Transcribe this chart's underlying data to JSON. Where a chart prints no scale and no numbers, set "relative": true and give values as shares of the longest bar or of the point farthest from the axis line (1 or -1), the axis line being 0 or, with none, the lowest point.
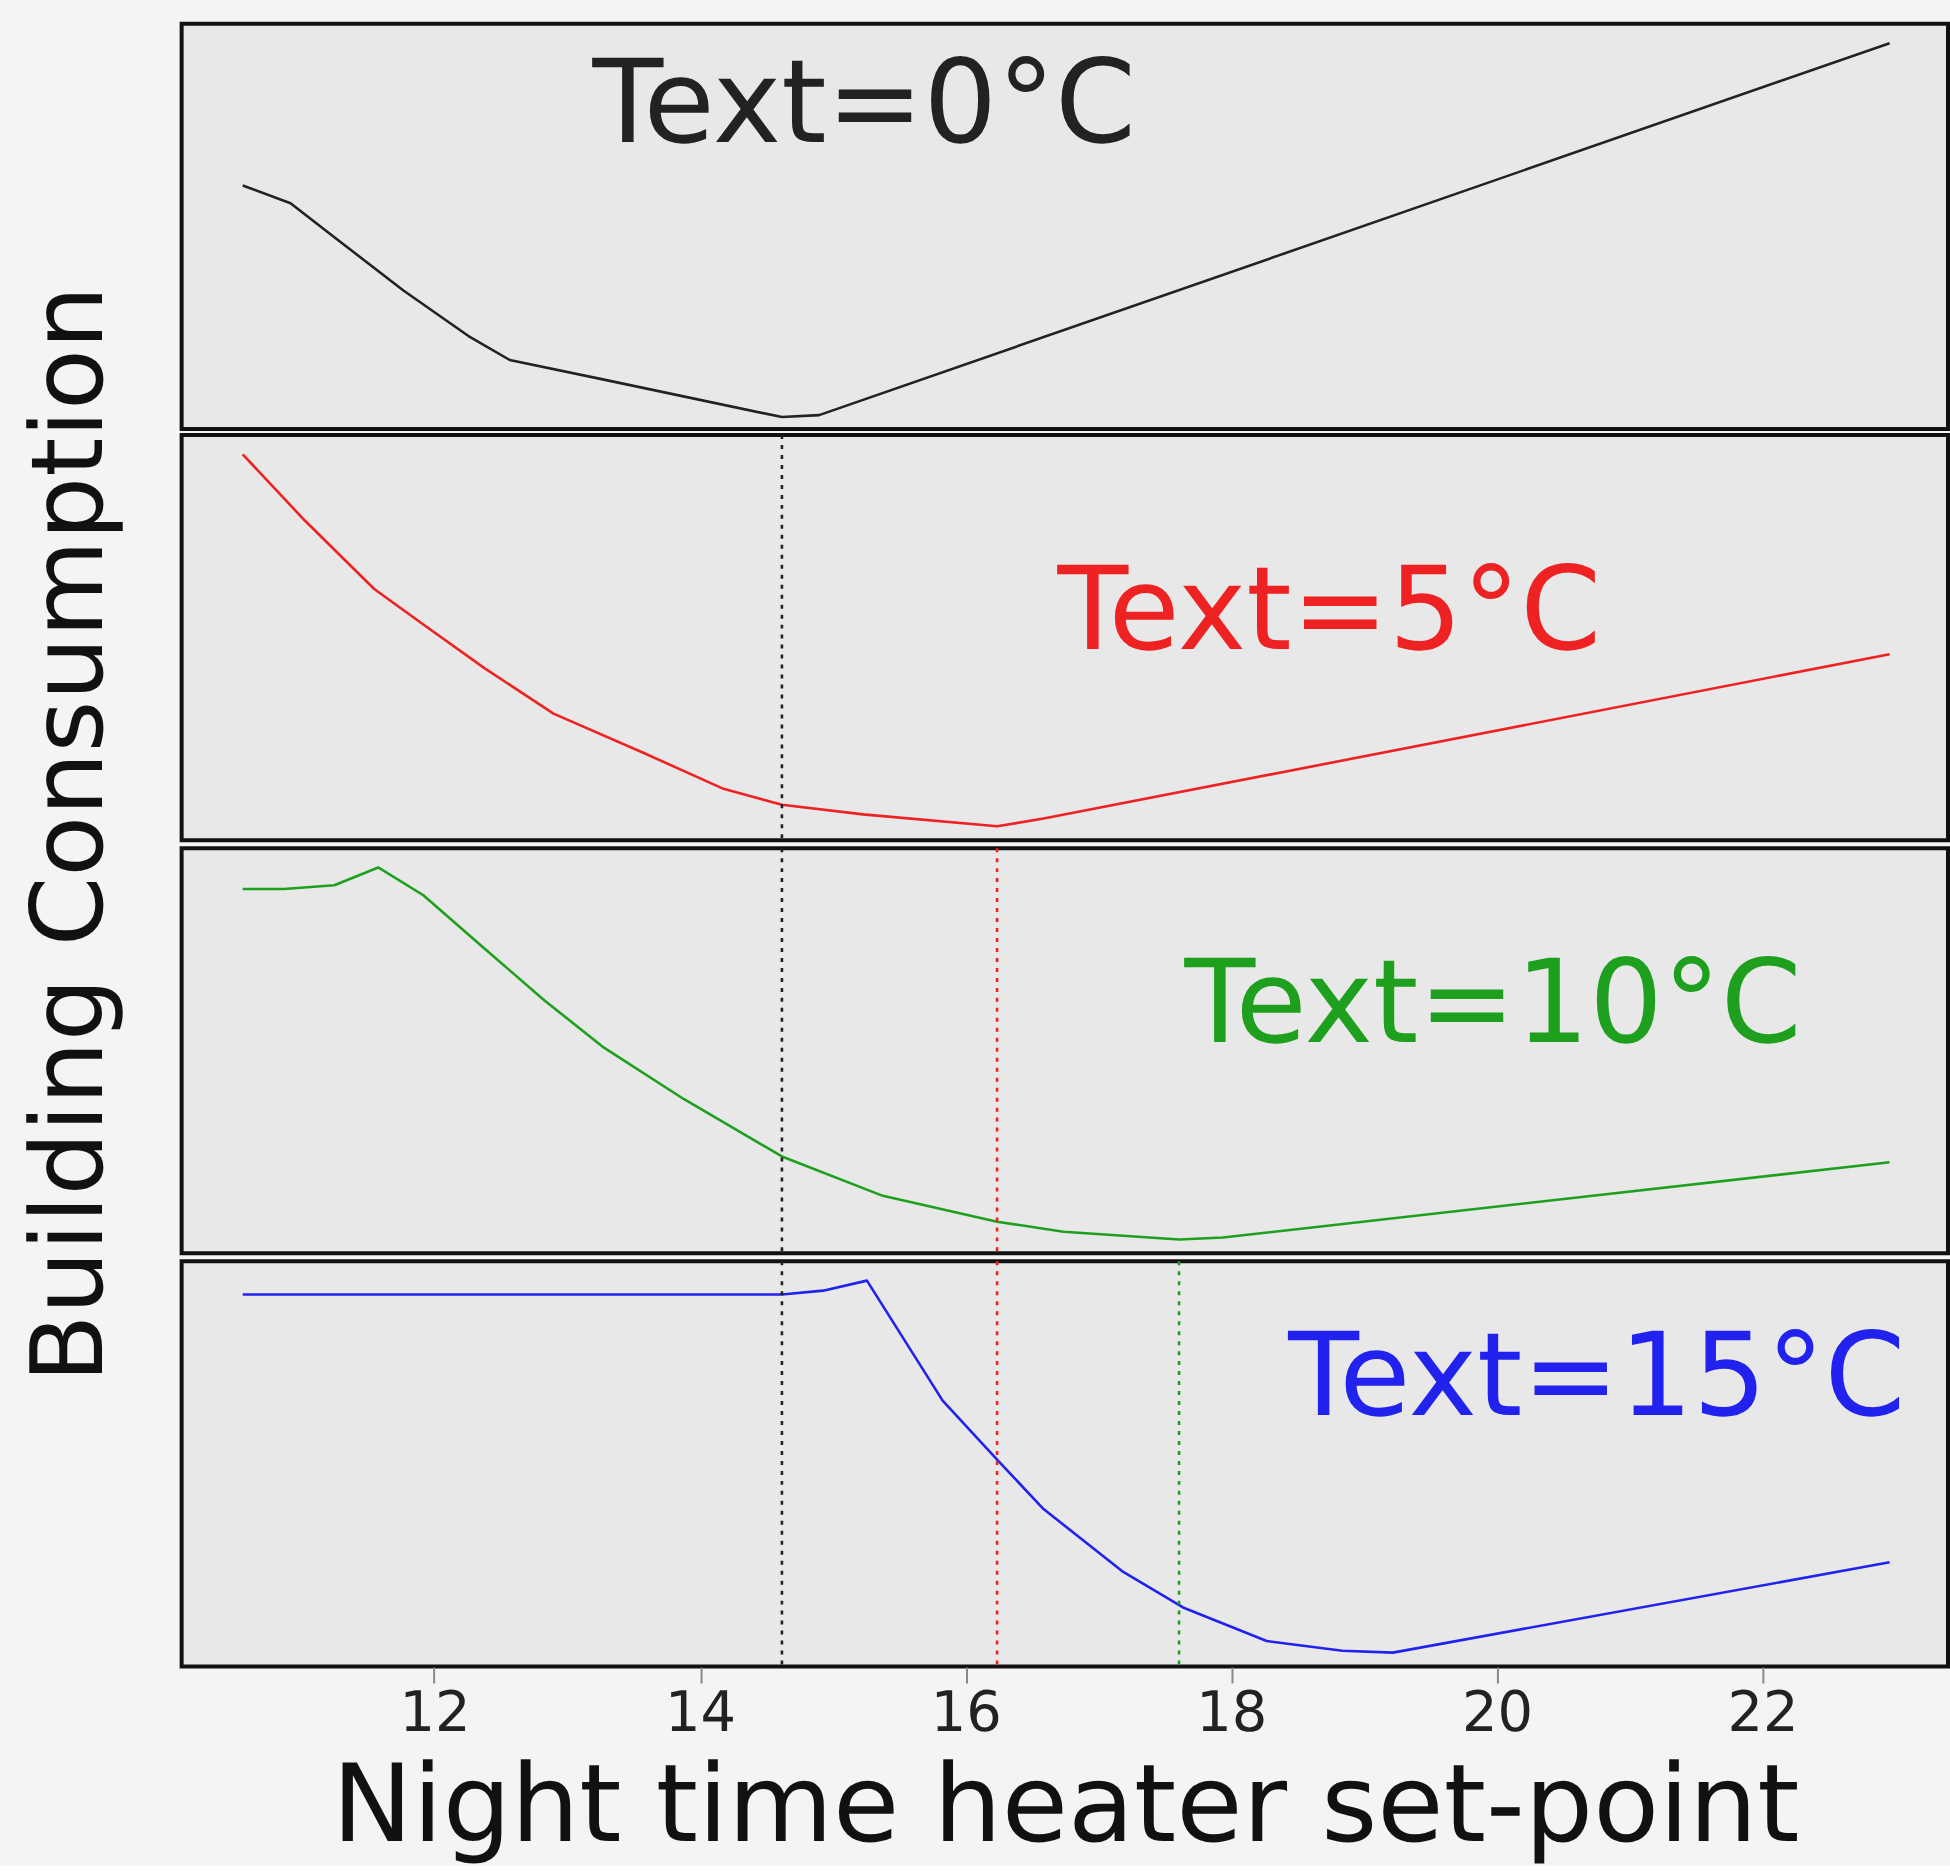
{
  "chart_data": [
    {
      "type": "line",
      "relative": true,
      "ylabel": "Building Consumption",
      "annotations": [
        "Text=0°C"
      ],
      "xlim": [
        10.1,
        23.4
      ],
      "tick_labels": false,
      "line_style": "solid",
      "marker": "none",
      "series": [
        {
          "color": "#222222",
          "x": [
            10.56,
            10.92,
            11.25,
            11.77,
            12.26,
            12.57,
            13.28,
            14.62,
            14.9,
            22.96
          ],
          "values": [
            0.631,
            0.585,
            0.497,
            0.359,
            0.241,
            0.179,
            0.128,
            0.031,
            0.036,
            1
          ]
        }
      ]
    },
    {
      "type": "line",
      "relative": true,
      "annotations": [
        "Text=5°C"
      ],
      "xlim": [
        10.1,
        23.4
      ],
      "tick_labels": false,
      "line_style": "solid",
      "marker": "none",
      "ref_lines": [
        {
          "axis": "x",
          "value": 14.62,
          "color": "#222222",
          "line_style": "dotted"
        }
      ],
      "series": [
        {
          "color": "#ee2222",
          "x": [
            10.56,
            11.02,
            11.55,
            11.92,
            12.38,
            12.9,
            13.58,
            14.18,
            14.62,
            15.23,
            16.24,
            16.59,
            22.96
          ],
          "values": [
            1,
            0.831,
            0.651,
            0.559,
            0.446,
            0.328,
            0.226,
            0.133,
            0.092,
            0.067,
            0.036,
            0.056,
            0.482
          ]
        }
      ]
    },
    {
      "type": "line",
      "relative": true,
      "annotations": [
        "Text=10°C"
      ],
      "xlim": [
        10.1,
        23.4
      ],
      "tick_labels": false,
      "line_style": "solid",
      "marker": "none",
      "ref_lines": [
        {
          "axis": "x",
          "value": 14.62,
          "color": "#222222",
          "line_style": "dotted"
        },
        {
          "axis": "x",
          "value": 16.24,
          "color": "#ee2222",
          "line_style": "dotted"
        }
      ],
      "series": [
        {
          "color": "#1ea01e",
          "x": [
            10.56,
            10.87,
            11.25,
            11.58,
            11.92,
            12.38,
            12.83,
            13.28,
            13.88,
            14.62,
            15.38,
            16.24,
            16.74,
            17.61,
            17.94,
            22.96
          ],
          "values": [
            0.944,
            0.944,
            0.954,
            1,
            0.928,
            0.79,
            0.656,
            0.533,
            0.4,
            0.251,
            0.149,
            0.082,
            0.056,
            0.036,
            0.041,
            0.236
          ]
        }
      ]
    },
    {
      "type": "line",
      "relative": true,
      "xlabel": "Night time heater set-point",
      "annotations": [
        "Text=15°C"
      ],
      "xlim": [
        10.1,
        23.4
      ],
      "xticks": [
        12,
        14,
        16,
        18,
        20,
        22
      ],
      "tick_labels": "x",
      "line_style": "solid",
      "marker": "none",
      "ref_lines": [
        {
          "axis": "x",
          "value": 14.62,
          "color": "#222222",
          "line_style": "dotted"
        },
        {
          "axis": "x",
          "value": 16.24,
          "color": "#ee2222",
          "line_style": "dotted"
        },
        {
          "axis": "x",
          "value": 17.61,
          "color": "#1ea01e",
          "line_style": "dotted"
        }
      ],
      "series": [
        {
          "color": "#2222ee",
          "x": [
            10.56,
            14.62,
            14.93,
            15.26,
            15.83,
            16.24,
            16.59,
            17.19,
            17.64,
            18.27,
            18.84,
            19.22,
            22.96
          ],
          "values": [
            0.964,
            0.964,
            0.974,
            1,
            0.689,
            0.536,
            0.408,
            0.245,
            0.153,
            0.066,
            0.041,
            0.036,
            0.27
          ]
        }
      ]
    }
  ]
}
